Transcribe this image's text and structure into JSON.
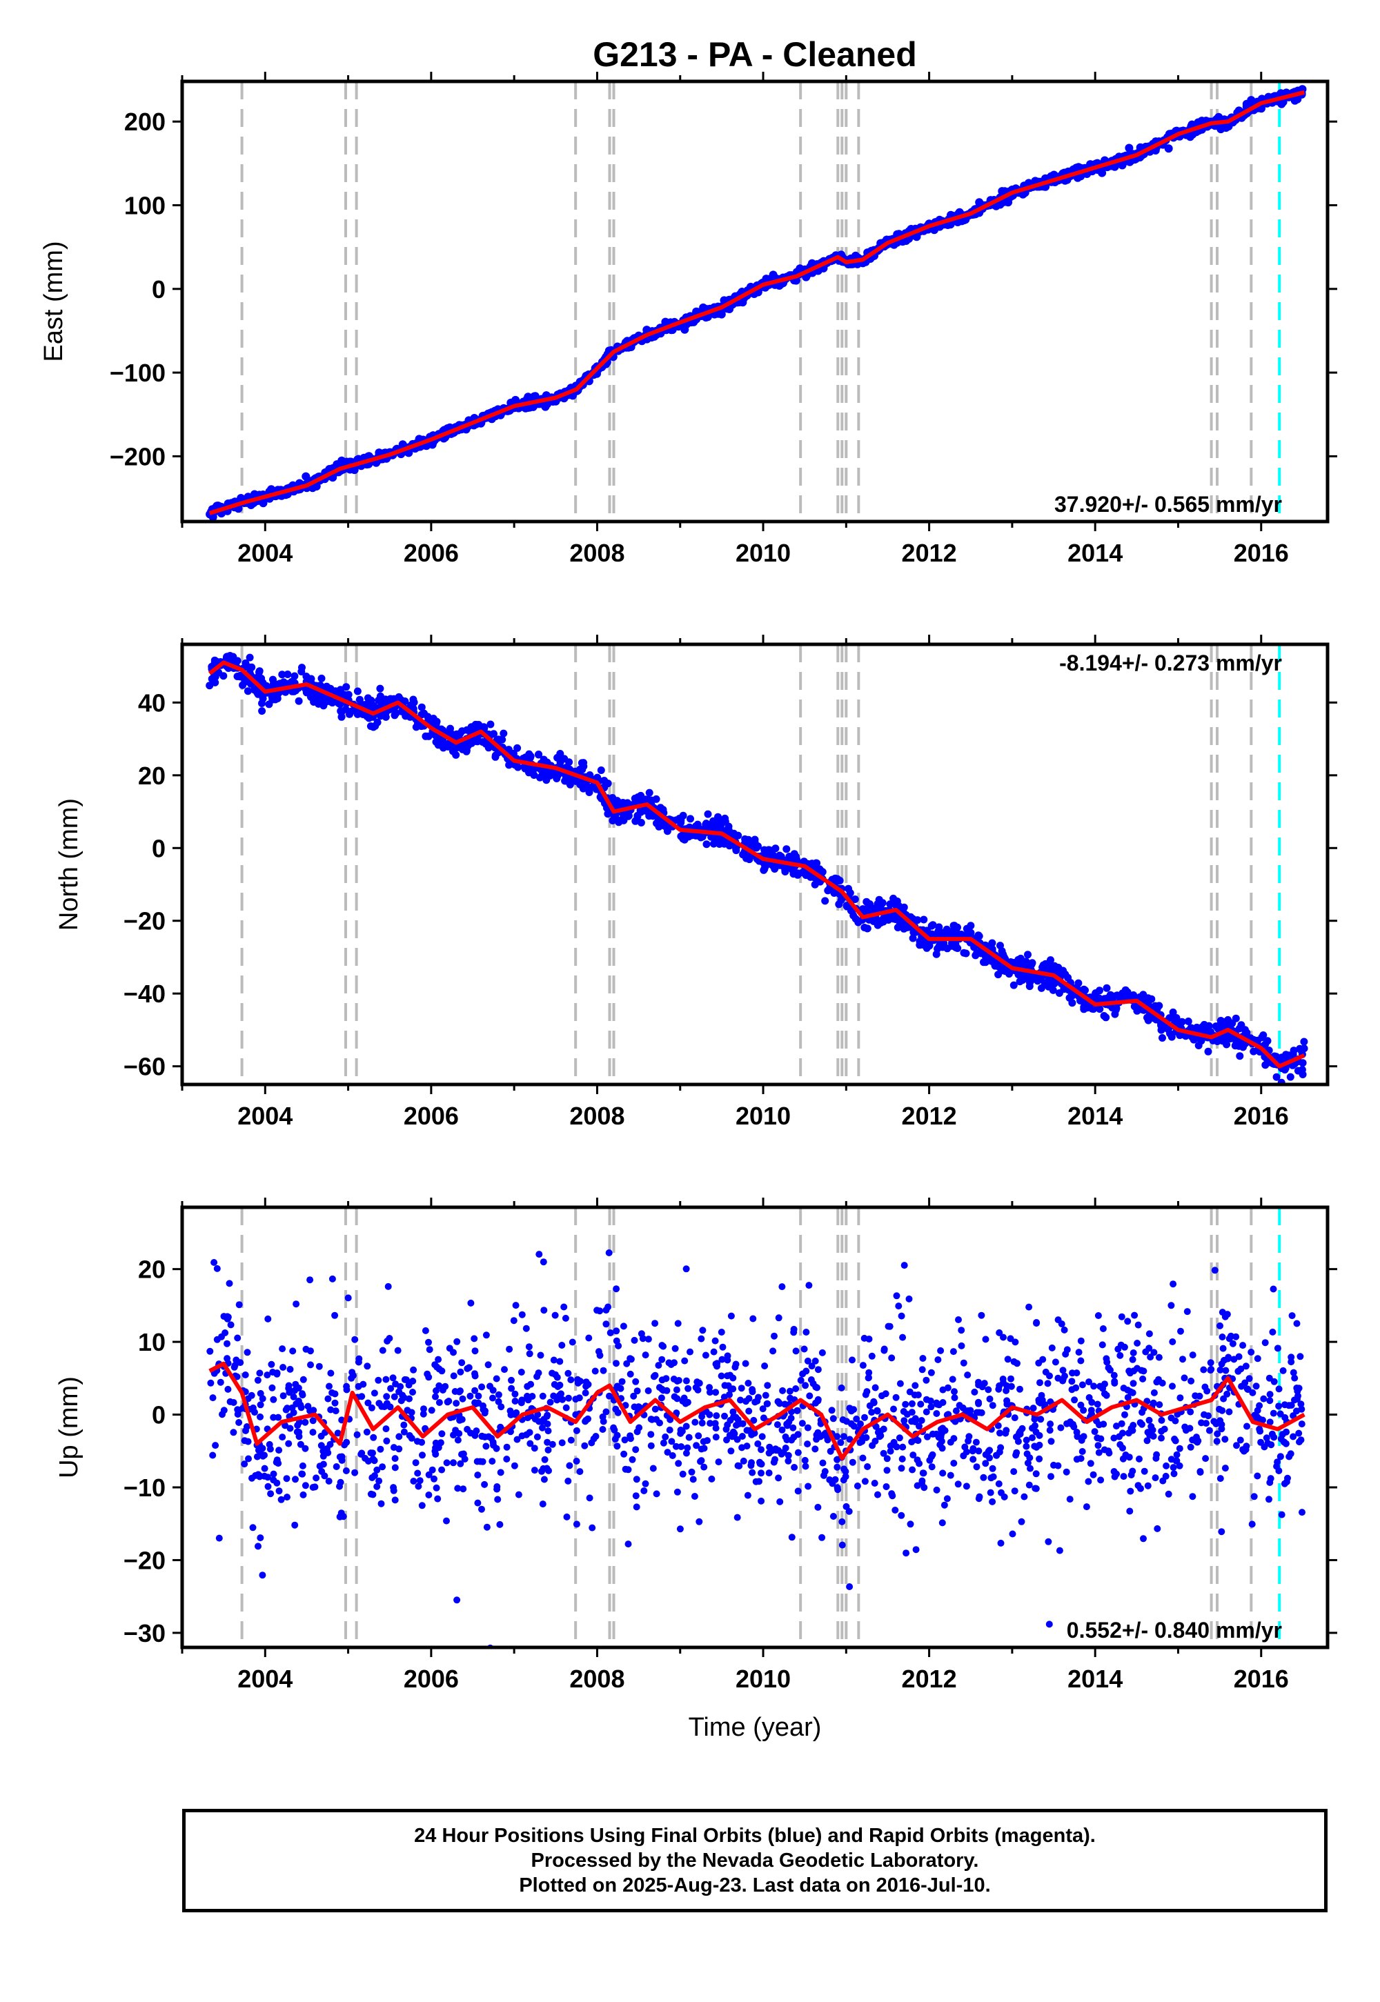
{
  "title": "G213  - PA - Cleaned",
  "xlabel": "Time (year)",
  "footer": {
    "line1": "24 Hour Positions Using Final Orbits (blue) and Rapid Orbits (magenta).",
    "line2": "Processed by the Nevada Geodetic Laboratory.",
    "line3": "Plotted on 2025-Aug-23. Last data on 2016-Jul-10."
  },
  "colors": {
    "data": "#0000ff",
    "model": "#ff0000",
    "offset": "#bbbbbb",
    "last": "#00ffff"
  },
  "chart_data": [
    {
      "type": "scatter",
      "component": "east",
      "ylabel": "East (mm)",
      "rate": "37.920+/- 0.565 mm/yr",
      "xlim": [
        2003.0,
        2016.8
      ],
      "ylim": [
        -278,
        248
      ],
      "xticks": [
        2004,
        2006,
        2008,
        2010,
        2012,
        2014,
        2016
      ],
      "yticks": [
        -200,
        -100,
        0,
        100,
        200
      ],
      "data_span": [
        2003.33,
        2016.52
      ],
      "series": [
        {
          "name": "",
          "style": "points",
          "x": [
            2003.33,
            2003.75,
            2004.5,
            2004.9,
            2005.5,
            2006.0,
            2006.5,
            2007.0,
            2007.5,
            2007.75,
            2008.0,
            2008.2,
            2008.6,
            2009.0,
            2009.5,
            2010.0,
            2010.4,
            2010.9,
            2011.0,
            2011.2,
            2011.5,
            2012.0,
            2012.5,
            2013.0,
            2013.5,
            2014.0,
            2014.5,
            2015.0,
            2015.4,
            2015.6,
            2016.0,
            2016.52
          ],
          "y": [
            -268,
            -255,
            -235,
            -215,
            -198,
            -180,
            -160,
            -140,
            -130,
            -120,
            -95,
            -75,
            -55,
            -40,
            -22,
            5,
            15,
            38,
            32,
            35,
            55,
            75,
            90,
            115,
            130,
            145,
            160,
            185,
            198,
            200,
            222,
            235
          ]
        },
        {
          "name": "",
          "style": "line",
          "x": [
            2003.33,
            2003.75,
            2004.5,
            2004.9,
            2005.5,
            2006.0,
            2006.5,
            2007.0,
            2007.5,
            2007.75,
            2008.0,
            2008.2,
            2008.6,
            2009.0,
            2009.5,
            2010.0,
            2010.4,
            2010.9,
            2011.0,
            2011.2,
            2011.5,
            2012.0,
            2012.5,
            2013.0,
            2013.5,
            2014.0,
            2014.5,
            2015.0,
            2015.4,
            2015.6,
            2016.0,
            2016.52
          ],
          "y": [
            -268,
            -255,
            -235,
            -215,
            -198,
            -180,
            -160,
            -140,
            -130,
            -120,
            -95,
            -75,
            -55,
            -40,
            -22,
            5,
            15,
            38,
            32,
            35,
            55,
            75,
            90,
            115,
            130,
            145,
            160,
            185,
            198,
            200,
            222,
            235
          ]
        }
      ],
      "offsets": [
        2003.72,
        2004.97,
        2005.1,
        2007.74,
        2008.15,
        2008.2,
        2010.45,
        2010.9,
        2010.95,
        2011.0,
        2011.15,
        2015.4,
        2015.47,
        2015.88
      ],
      "last_data": 2016.22
    },
    {
      "type": "scatter",
      "component": "north",
      "ylabel": "North (mm)",
      "rate": "-8.194+/- 0.273 mm/yr",
      "xlim": [
        2003.0,
        2016.8
      ],
      "ylim": [
        -65,
        56
      ],
      "xticks": [
        2004,
        2006,
        2008,
        2010,
        2012,
        2014,
        2016
      ],
      "yticks": [
        -60,
        -40,
        -20,
        0,
        20,
        40
      ],
      "data_span": [
        2003.33,
        2016.52
      ],
      "series": [
        {
          "name": "",
          "style": "points",
          "x": [
            2003.33,
            2003.5,
            2003.72,
            2004.0,
            2004.5,
            2005.0,
            2005.3,
            2005.6,
            2006.0,
            2006.3,
            2006.6,
            2007.0,
            2007.5,
            2008.0,
            2008.2,
            2008.6,
            2009.0,
            2009.5,
            2010.0,
            2010.5,
            2010.95,
            2011.2,
            2011.6,
            2012.0,
            2012.5,
            2013.0,
            2013.5,
            2014.0,
            2014.5,
            2015.0,
            2015.4,
            2015.6,
            2016.0,
            2016.22,
            2016.52
          ],
          "y": [
            48,
            51,
            49,
            43,
            45,
            40,
            37,
            40,
            33,
            29,
            32,
            24,
            22,
            18,
            10,
            12,
            5,
            4,
            -3,
            -5,
            -12,
            -19,
            -17,
            -25,
            -25,
            -33,
            -35,
            -43,
            -42,
            -50,
            -52,
            -50,
            -55,
            -60,
            -57
          ]
        },
        {
          "name": "",
          "style": "line",
          "x": [
            2003.33,
            2003.5,
            2003.72,
            2004.0,
            2004.5,
            2005.0,
            2005.3,
            2005.6,
            2006.0,
            2006.3,
            2006.6,
            2007.0,
            2007.5,
            2008.0,
            2008.2,
            2008.6,
            2009.0,
            2009.5,
            2010.0,
            2010.5,
            2010.95,
            2011.2,
            2011.6,
            2012.0,
            2012.5,
            2013.0,
            2013.5,
            2014.0,
            2014.5,
            2015.0,
            2015.4,
            2015.6,
            2016.0,
            2016.22,
            2016.52
          ],
          "y": [
            48,
            51,
            49,
            43,
            45,
            40,
            37,
            40,
            33,
            29,
            32,
            24,
            22,
            18,
            10,
            12,
            5,
            4,
            -3,
            -5,
            -12,
            -19,
            -17,
            -25,
            -25,
            -33,
            -35,
            -43,
            -42,
            -50,
            -52,
            -50,
            -55,
            -60,
            -57
          ]
        }
      ],
      "offsets": [
        2003.72,
        2004.97,
        2005.1,
        2007.74,
        2008.15,
        2008.2,
        2010.45,
        2010.9,
        2010.95,
        2011.0,
        2011.15,
        2015.4,
        2015.47,
        2015.88
      ],
      "last_data": 2016.22
    },
    {
      "type": "scatter",
      "component": "up",
      "ylabel": "Up (mm)",
      "rate": "0.552+/- 0.840 mm/yr",
      "xlim": [
        2003.0,
        2016.8
      ],
      "ylim": [
        -32,
        28.5
      ],
      "xticks": [
        2004,
        2006,
        2008,
        2010,
        2012,
        2014,
        2016
      ],
      "yticks": [
        -30,
        -20,
        -10,
        0,
        10,
        20
      ],
      "data_span": [
        2003.33,
        2016.52
      ],
      "series": [
        {
          "name": "",
          "style": "points",
          "x": [
            2003.33,
            2003.5,
            2003.72,
            2003.9,
            2004.2,
            2004.6,
            2004.9,
            2005.05,
            2005.3,
            2005.6,
            2005.9,
            2006.2,
            2006.5,
            2006.8,
            2007.1,
            2007.4,
            2007.74,
            2008.0,
            2008.15,
            2008.4,
            2008.7,
            2009.0,
            2009.3,
            2009.6,
            2009.9,
            2010.2,
            2010.45,
            2010.7,
            2010.95,
            2011.2,
            2011.5,
            2011.8,
            2012.1,
            2012.4,
            2012.7,
            2013.0,
            2013.3,
            2013.6,
            2013.9,
            2014.2,
            2014.5,
            2014.8,
            2015.1,
            2015.4,
            2015.6,
            2015.9,
            2016.2,
            2016.52
          ],
          "y": [
            6,
            7,
            3,
            -4,
            -1,
            0,
            -4,
            3,
            -2,
            1,
            -3,
            0,
            1,
            -3,
            0,
            1,
            -1,
            3,
            4,
            -1,
            2,
            -1,
            1,
            2,
            -2,
            0,
            2,
            0,
            -6,
            -2,
            0,
            -3,
            -1,
            0,
            -2,
            1,
            0,
            2,
            -1,
            1,
            2,
            0,
            1,
            2,
            5,
            -1,
            -2,
            0
          ]
        },
        {
          "name": "",
          "style": "line",
          "x": [
            2003.33,
            2003.5,
            2003.72,
            2003.9,
            2004.2,
            2004.6,
            2004.9,
            2005.05,
            2005.3,
            2005.6,
            2005.9,
            2006.2,
            2006.5,
            2006.8,
            2007.1,
            2007.4,
            2007.74,
            2008.0,
            2008.15,
            2008.4,
            2008.7,
            2009.0,
            2009.3,
            2009.6,
            2009.9,
            2010.2,
            2010.45,
            2010.7,
            2010.95,
            2011.2,
            2011.5,
            2011.8,
            2012.1,
            2012.4,
            2012.7,
            2013.0,
            2013.3,
            2013.6,
            2013.9,
            2014.2,
            2014.5,
            2014.8,
            2015.1,
            2015.4,
            2015.6,
            2015.9,
            2016.2,
            2016.52
          ],
          "y": [
            6,
            7,
            3,
            -4,
            -1,
            0,
            -4,
            3,
            -2,
            1,
            -3,
            0,
            1,
            -3,
            0,
            1,
            -1,
            3,
            4,
            -1,
            2,
            -1,
            1,
            2,
            -2,
            0,
            2,
            0,
            -6,
            -2,
            0,
            -3,
            -1,
            0,
            -2,
            1,
            0,
            2,
            -1,
            1,
            2,
            0,
            1,
            2,
            5,
            -1,
            -2,
            0
          ]
        }
      ],
      "offsets": [
        2003.72,
        2004.97,
        2005.1,
        2007.74,
        2008.15,
        2008.2,
        2010.45,
        2010.9,
        2010.95,
        2011.0,
        2011.15,
        2015.4,
        2015.47,
        2015.88
      ],
      "last_data": 2016.22
    }
  ]
}
